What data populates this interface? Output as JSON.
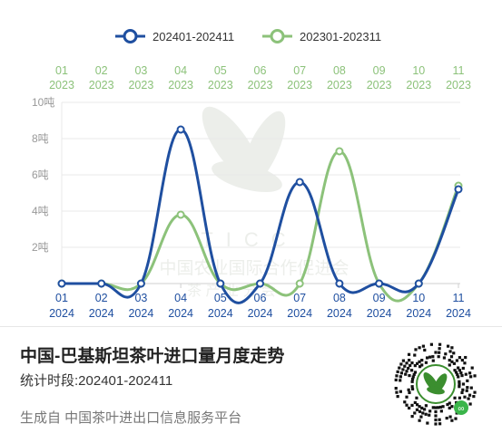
{
  "chart_data": {
    "type": "line",
    "x_top": [
      {
        "month": "01",
        "year": "2023"
      },
      {
        "month": "02",
        "year": "2023"
      },
      {
        "month": "03",
        "year": "2023"
      },
      {
        "month": "04",
        "year": "2023"
      },
      {
        "month": "05",
        "year": "2023"
      },
      {
        "month": "06",
        "year": "2023"
      },
      {
        "month": "07",
        "year": "2023"
      },
      {
        "month": "08",
        "year": "2023"
      },
      {
        "month": "09",
        "year": "2023"
      },
      {
        "month": "10",
        "year": "2023"
      },
      {
        "month": "11",
        "year": "2023"
      }
    ],
    "x_bottom": [
      {
        "month": "01",
        "year": "2024"
      },
      {
        "month": "02",
        "year": "2024"
      },
      {
        "month": "03",
        "year": "2024"
      },
      {
        "month": "04",
        "year": "2024"
      },
      {
        "month": "05",
        "year": "2024"
      },
      {
        "month": "06",
        "year": "2024"
      },
      {
        "month": "07",
        "year": "2024"
      },
      {
        "month": "08",
        "year": "2024"
      },
      {
        "month": "09",
        "year": "2024"
      },
      {
        "month": "10",
        "year": "2024"
      },
      {
        "month": "11",
        "year": "2024"
      }
    ],
    "y_ticks": [
      "2吨",
      "4吨",
      "6吨",
      "8吨",
      "10吨"
    ],
    "ylim": [
      0,
      10
    ],
    "grid": true,
    "legend_position": "top-center",
    "series": [
      {
        "name": "202401-202411",
        "color": "#1f4fa0",
        "values": [
          0,
          0,
          0,
          8.5,
          0,
          0,
          5.6,
          0,
          0,
          0,
          5.2
        ]
      },
      {
        "name": "202301-202311",
        "color": "#8cc27a",
        "values": [
          0,
          0,
          0,
          3.8,
          0,
          0,
          0,
          7.3,
          0,
          0,
          5.4
        ]
      }
    ]
  },
  "watermark": {
    "logo_text": "TICC",
    "line1": "中国农业国际合作促进会",
    "line2": "茶  产  业  分  会"
  },
  "footer": {
    "title": "中国-巴基斯坦茶叶进口量月度走势",
    "period_label": "统计时段:",
    "period_value": "202401-202411",
    "source": "生成自 中国茶叶进出口信息服务平台"
  },
  "qr_code": {
    "icon": "tea-leaf-logo-icon",
    "accent_color": "#3b8e2f"
  }
}
